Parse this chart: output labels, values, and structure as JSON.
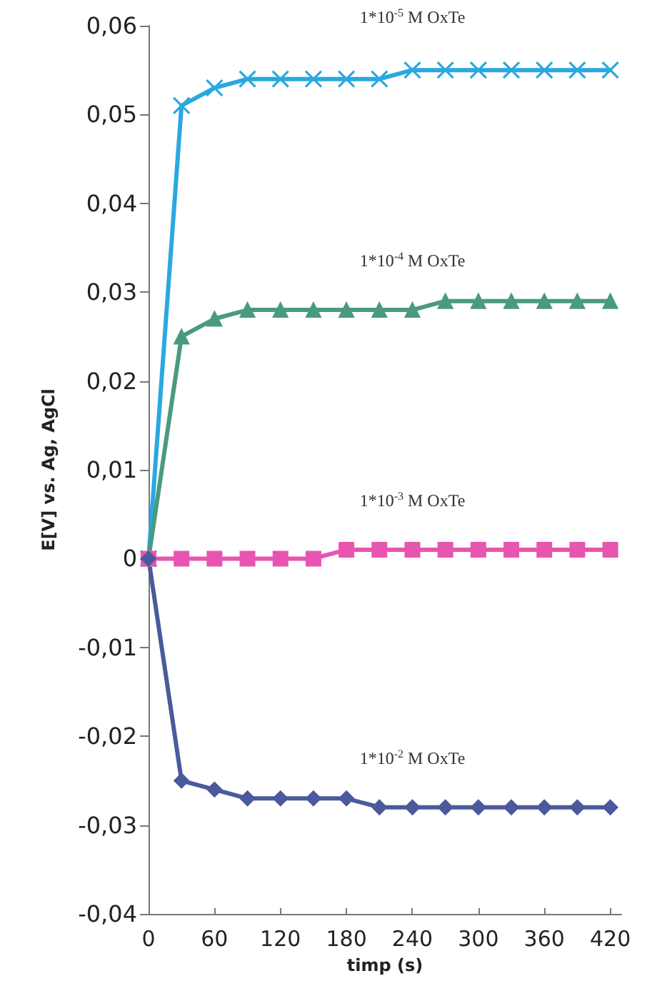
{
  "chart_data": {
    "type": "line",
    "xlabel": "timp (s)",
    "ylabel": "E[V] vs. Ag, AgCl",
    "x": [
      0,
      30,
      60,
      90,
      120,
      150,
      180,
      210,
      240,
      270,
      300,
      330,
      360,
      390,
      420
    ],
    "series": [
      {
        "name": "1*10$^{-5}$ M OxTe",
        "color": "#2aa8e0",
        "marker": "cross",
        "values": [
          0,
          0.051,
          0.053,
          0.054,
          0.054,
          0.054,
          0.054,
          0.054,
          0.055,
          0.055,
          0.055,
          0.055,
          0.055,
          0.055,
          0.055
        ]
      },
      {
        "name": "1*10$^{-4}$ M OxTe",
        "color": "#4a9a80",
        "marker": "triangle",
        "values": [
          0,
          0.025,
          0.027,
          0.028,
          0.028,
          0.028,
          0.028,
          0.028,
          0.028,
          0.029,
          0.029,
          0.029,
          0.029,
          0.029,
          0.029
        ]
      },
      {
        "name": "1*10$^{-3}$ M OxTe",
        "color": "#e855b0",
        "marker": "square",
        "values": [
          0,
          0,
          0,
          0,
          0,
          0,
          0.001,
          0.001,
          0.001,
          0.001,
          0.001,
          0.001,
          0.001,
          0.001,
          0.001
        ]
      },
      {
        "name": "1*10$^{-2}$ M OxTe",
        "color": "#4a5a9c",
        "marker": "diamond",
        "values": [
          0,
          -0.025,
          -0.026,
          -0.027,
          -0.027,
          -0.027,
          -0.027,
          -0.028,
          -0.028,
          -0.028,
          -0.028,
          -0.028,
          -0.028,
          -0.028,
          -0.028
        ]
      }
    ],
    "xlim": [
      0,
      430
    ],
    "xticks": [
      0,
      60,
      120,
      180,
      240,
      300,
      360,
      420
    ],
    "ylim": [
      -0.04,
      0.06
    ],
    "yticks": [
      {
        "value": -0.04,
        "label": "-0,04"
      },
      {
        "value": -0.03,
        "label": "-0,03"
      },
      {
        "value": -0.02,
        "label": "-0,02"
      },
      {
        "value": -0.01,
        "label": "-0,01"
      },
      {
        "value": 0,
        "label": "0"
      },
      {
        "value": 0.01,
        "label": "0,01"
      },
      {
        "value": 0.02,
        "label": "0,02"
      },
      {
        "value": 0.03,
        "label": "0,03"
      },
      {
        "value": 0.04,
        "label": "0,04"
      },
      {
        "value": 0.05,
        "label": "0,05"
      },
      {
        "value": 0.06,
        "label": "0,06"
      }
    ],
    "grid": false,
    "legend": false,
    "line_style": "solid"
  }
}
